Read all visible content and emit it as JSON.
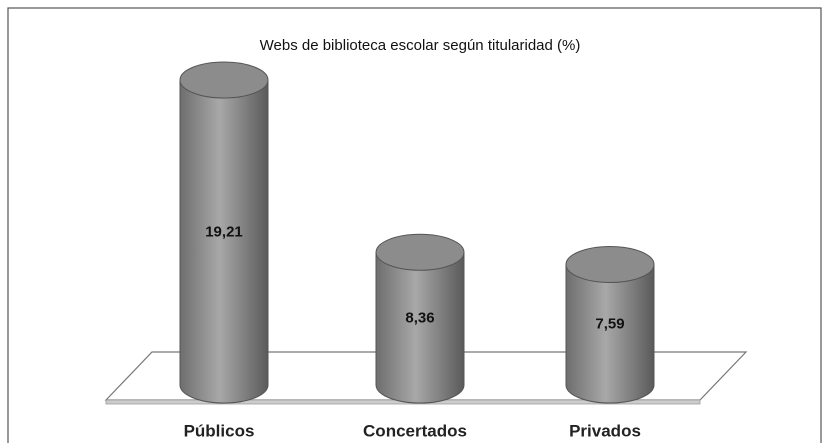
{
  "chart_data": {
    "type": "bar",
    "title": "Webs de biblioteca escolar según titularidad (%)",
    "categories": [
      "Públicos",
      "Concertados",
      "Privados"
    ],
    "values": [
      19.21,
      8.36,
      7.59
    ],
    "value_labels": [
      "19,21",
      "8,36",
      "7,59"
    ],
    "color": "#8c8c8c"
  }
}
